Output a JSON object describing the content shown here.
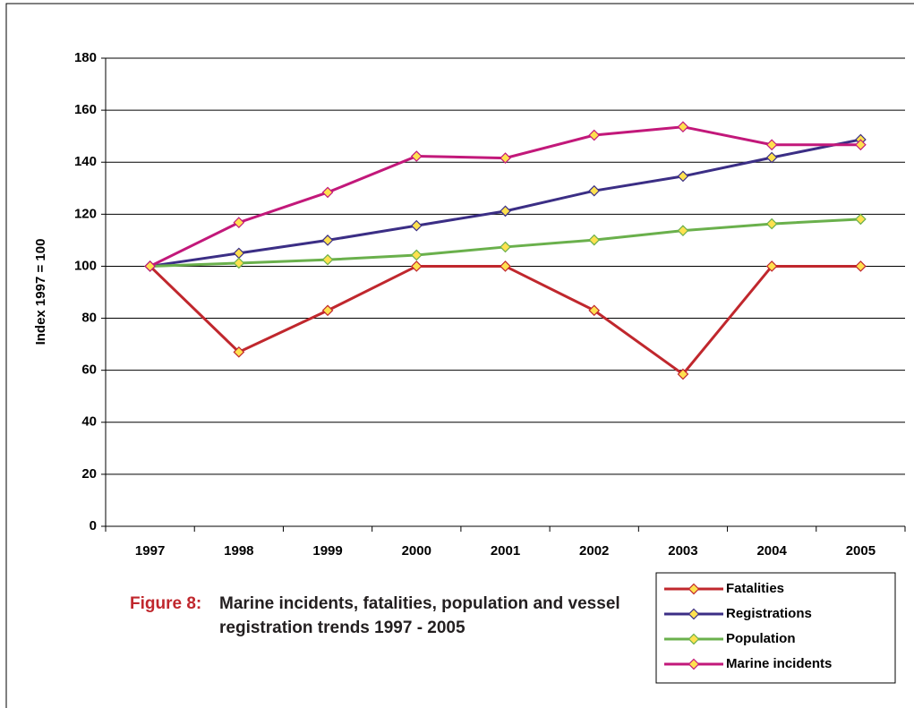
{
  "chart_data": {
    "type": "line",
    "caption_label": "Figure 8:",
    "title": "Marine incidents, fatalities, population and vessel registration trends 1997 - 2005",
    "y_label": "Index 1997 = 100",
    "categories": [
      "1997",
      "1998",
      "1999",
      "2000",
      "2001",
      "2002",
      "2003",
      "2004",
      "2005"
    ],
    "series": [
      {
        "name": "Fatalities",
        "color": "#c0272d",
        "values": [
          100,
          67,
          83,
          100,
          100,
          83,
          58.5,
          100,
          100
        ]
      },
      {
        "name": "Registrations",
        "color": "#3b2e85",
        "values": [
          100,
          105,
          110,
          115.6,
          121.2,
          129,
          134.6,
          141.8,
          148.7
        ]
      },
      {
        "name": "Population",
        "color": "#6ab04c",
        "values": [
          100,
          101.2,
          102.5,
          104.3,
          107.4,
          110.1,
          113.7,
          116.3,
          118.1
        ]
      },
      {
        "name": "Marine incidents",
        "color": "#c2187a",
        "values": [
          100,
          116.8,
          128.4,
          142.3,
          141.6,
          150.4,
          153.6,
          146.7,
          146.7
        ]
      }
    ],
    "marker_fill": "#ffe14f",
    "ylim": [
      0,
      180
    ],
    "yticks": [
      0,
      20,
      40,
      60,
      80,
      100,
      120,
      140,
      160,
      180
    ],
    "grid": true
  }
}
